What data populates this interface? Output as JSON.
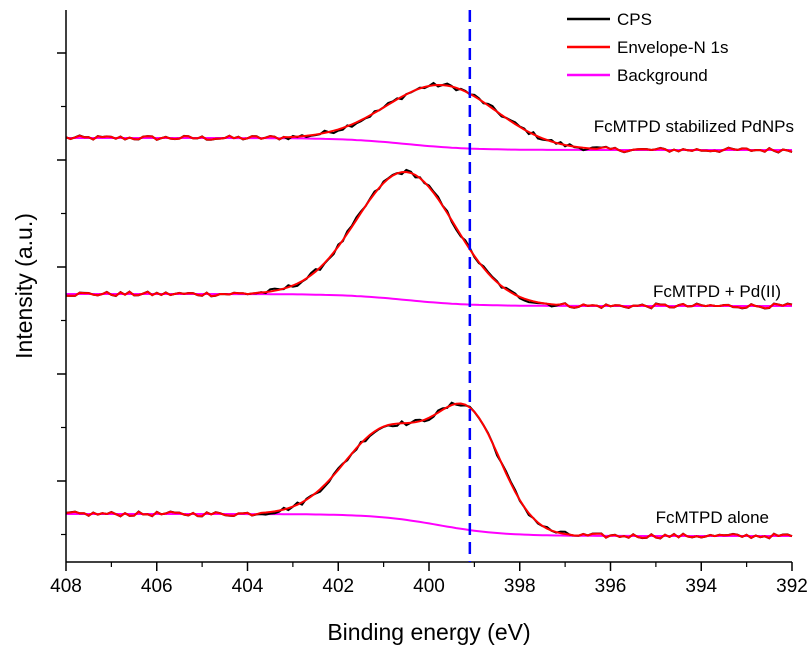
{
  "chart_data": {
    "type": "line",
    "title": "",
    "xlabel": "Binding energy (eV)",
    "ylabel": "Intensity (a.u.)",
    "xlim": [
      408,
      392
    ],
    "x_reversed": true,
    "x_ticks": [
      408,
      406,
      404,
      402,
      400,
      398,
      396,
      394,
      392
    ],
    "y_ticks_labeled": false,
    "grid": false,
    "legend_position": "top-right",
    "colors": {
      "CPS": "#000000",
      "Envelope-N 1s": "#ff0000",
      "Background": "#ff00ff",
      "reference_line": "#0000ff"
    },
    "reference_line": {
      "x": 399.1,
      "style": "dashed"
    },
    "legend": [
      "CPS",
      "Envelope-N 1s",
      "Background"
    ],
    "panels": [
      {
        "annotation": "FcMTPD stabilized PdNPs",
        "baseline_left": 0.12,
        "baseline_right": 0.0,
        "background_step_center": 400.5,
        "peaks": [
          {
            "center": 399.7,
            "height": 0.62,
            "sigma": 1.2
          }
        ]
      },
      {
        "annotation": "FcMTPD + Pd(II)",
        "baseline_left": 0.12,
        "baseline_right": 0.0,
        "background_step_center": 400.5,
        "peaks": [
          {
            "center": 400.5,
            "height": 1.28,
            "sigma": 1.08
          }
        ]
      },
      {
        "annotation": "FcMTPD alone",
        "baseline_left": 0.22,
        "baseline_right": 0.0,
        "background_step_center": 399.8,
        "peaks": [
          {
            "center": 400.9,
            "height": 0.88,
            "sigma": 0.95
          },
          {
            "center": 399.1,
            "height": 1.08,
            "sigma": 0.72
          }
        ]
      }
    ]
  }
}
